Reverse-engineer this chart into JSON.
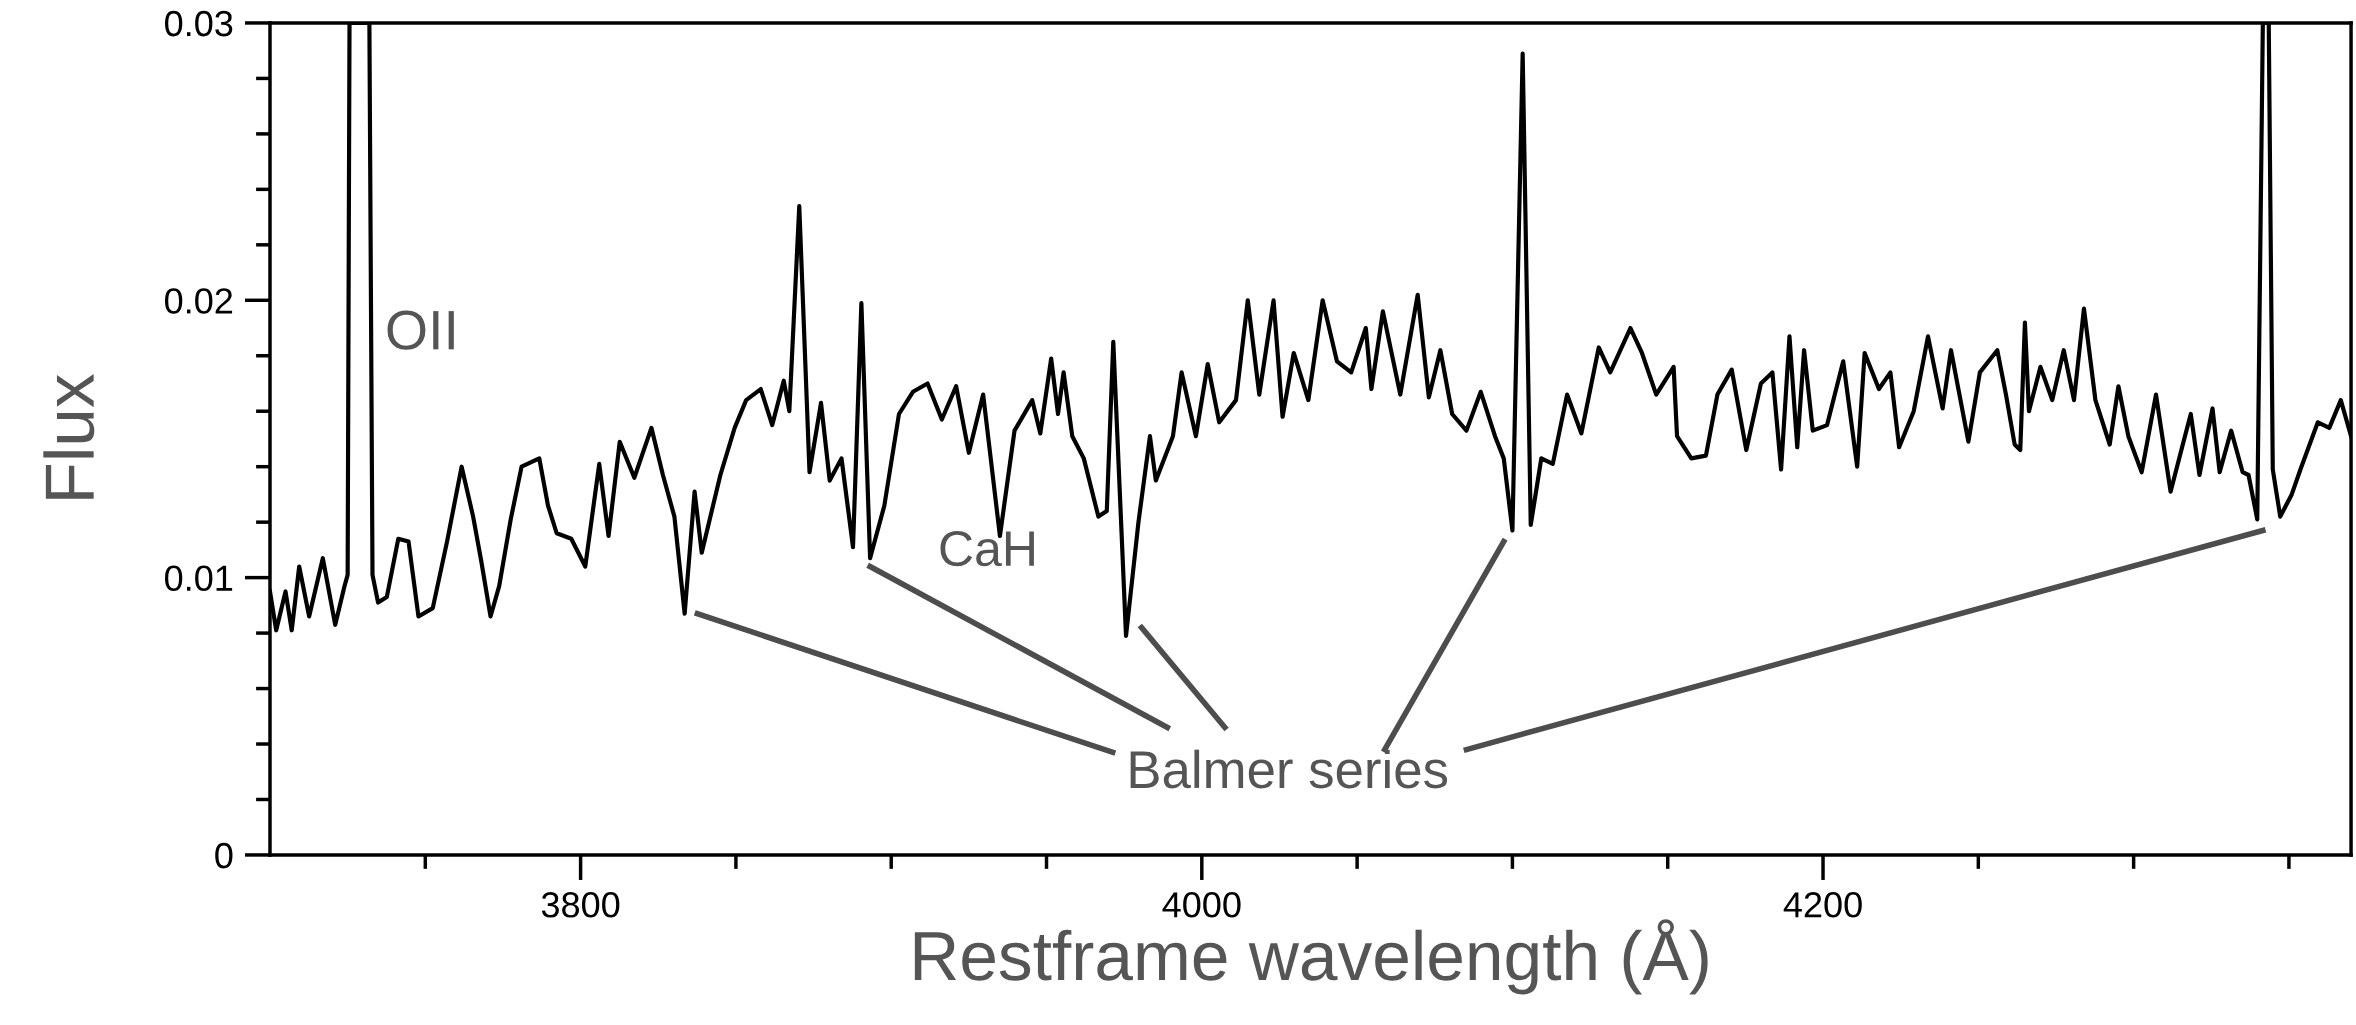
{
  "chart_data": {
    "type": "line",
    "xlabel": "Restframe wavelength (Å)",
    "ylabel": "Flux",
    "xlim": [
      3700,
      4370
    ],
    "ylim": [
      0,
      0.03
    ],
    "xticks": [
      {
        "value": 3750,
        "label": null
      },
      3800,
      {
        "value": 3850,
        "label": null
      },
      {
        "value": 3900,
        "label": null
      },
      {
        "value": 3950,
        "label": null
      },
      4000,
      {
        "value": 4050,
        "label": null
      },
      {
        "value": 4100,
        "label": null
      },
      {
        "value": 4150,
        "label": null
      },
      4200,
      {
        "value": 4250,
        "label": null
      },
      {
        "value": 4300,
        "label": null
      },
      {
        "value": 4350,
        "label": null
      }
    ],
    "yticks": [
      0,
      {
        "value": 0.002,
        "label": null
      },
      {
        "value": 0.004,
        "label": null
      },
      {
        "value": 0.006,
        "label": null
      },
      {
        "value": 0.008,
        "label": null
      },
      0.01,
      {
        "value": 0.012,
        "label": null
      },
      {
        "value": 0.014,
        "label": null
      },
      {
        "value": 0.016,
        "label": null
      },
      {
        "value": 0.018,
        "label": null
      },
      0.02,
      {
        "value": 0.022,
        "label": null
      },
      {
        "value": 0.024,
        "label": null
      },
      {
        "value": 0.026,
        "label": null
      },
      {
        "value": 0.028,
        "label": null
      },
      0.03
    ],
    "grid": false,
    "legend": false,
    "series": [
      {
        "color": "#000000",
        "x": [
          3700,
          3702,
          3705,
          3707,
          3709.4,
          3712.6,
          3717,
          3721,
          3724,
          3725,
          3725.6,
          3732,
          3733,
          3734.8,
          3737.6,
          3741.3,
          3744.6,
          3747.8,
          3752.4,
          3757,
          3761.7,
          3765.4,
          3768,
          3771,
          3773.8,
          3777.5,
          3781,
          3786.7,
          3789.5,
          3792.3,
          3797,
          3801.5,
          3806,
          3809,
          3812.6,
          3817.3,
          3822.8,
          3826.5,
          3830.2,
          3833.5,
          3836.7,
          3839,
          3845,
          3849.6,
          3853.3,
          3858,
          3861.7,
          3865.4,
          3867.2,
          3870.4,
          3873.7,
          3877.4,
          3880.2,
          3884,
          3887.7,
          3890.4,
          3893.2,
          3897.8,
          3902.5,
          3907,
          3911.7,
          3916.3,
          3920.9,
          3925,
          3929.6,
          3935,
          3939.7,
          3945.4,
          3948,
          3951.5,
          3953.7,
          3955.5,
          3958.3,
          3962,
          3966.7,
          3969.4,
          3971.5,
          3975.6,
          3979.6,
          3983.3,
          3985.2,
          3990.7,
          3993.5,
          3998.1,
          4001.9,
          4005.6,
          4011,
          4014.8,
          4018.5,
          4023.1,
          4026,
          4029.6,
          4034.3,
          4038.9,
          4043.5,
          4048.1,
          4052.8,
          4054.6,
          4058.3,
          4063.9,
          4069.5,
          4073.1,
          4076.8,
          4080.6,
          4085.2,
          4089.8,
          4094.4,
          4097.2,
          4100,
          4103.3,
          4105.9,
          4109.3,
          4113,
          4117.6,
          4122.2,
          4127.8,
          4131.5,
          4138,
          4141.7,
          4146.3,
          4151.9,
          4153,
          4157.6,
          4162.3,
          4166,
          4170.6,
          4175.3,
          4180,
          4183.7,
          4186.5,
          4189.2,
          4191.7,
          4193.9,
          4196.7,
          4201.3,
          4206.5,
          4211,
          4213.4,
          4218,
          4221.7,
          4224.5,
          4229.2,
          4233.8,
          4238.5,
          4241.2,
          4246.8,
          4250.5,
          4256.1,
          4258.9,
          4261.7,
          4263.5,
          4265,
          4266.3,
          4270,
          4273.8,
          4277.5,
          4280.8,
          4284,
          4287.7,
          4292.3,
          4295.1,
          4298.3,
          4302.6,
          4307.2,
          4311.9,
          4315.6,
          4318.4,
          4321.2,
          4325.4,
          4327.7,
          4331.4,
          4335.1,
          4337,
          4339.8,
          4341.6,
          4343.5,
          4344.8,
          4347.2,
          4350.9,
          4353.7,
          4359.3,
          4363,
          4366.7,
          4370
        ],
        "values": [
          0.0095,
          0.0081,
          0.0095,
          0.0081,
          0.0104,
          0.0086,
          0.0107,
          0.0083,
          0.0097,
          0.0101,
          0.03,
          0.03,
          0.0101,
          0.0091,
          0.0093,
          0.0114,
          0.0113,
          0.0086,
          0.0089,
          0.0113,
          0.014,
          0.0122,
          0.0106,
          0.0086,
          0.0097,
          0.0121,
          0.014,
          0.0143,
          0.0126,
          0.0116,
          0.0114,
          0.0104,
          0.0141,
          0.0115,
          0.0149,
          0.0136,
          0.0154,
          0.0137,
          0.0122,
          0.0087,
          0.0131,
          0.0109,
          0.0137,
          0.0154,
          0.0164,
          0.0168,
          0.0155,
          0.0171,
          0.016,
          0.0234,
          0.0138,
          0.0163,
          0.0135,
          0.0143,
          0.0111,
          0.0199,
          0.0107,
          0.0126,
          0.0159,
          0.0167,
          0.017,
          0.0157,
          0.0169,
          0.0145,
          0.0166,
          0.0115,
          0.0153,
          0.0164,
          0.0152,
          0.0179,
          0.0159,
          0.0174,
          0.0151,
          0.0143,
          0.0122,
          0.0124,
          0.0185,
          0.0079,
          0.012,
          0.0151,
          0.0135,
          0.0151,
          0.0174,
          0.0151,
          0.0177,
          0.0156,
          0.0164,
          0.02,
          0.0166,
          0.02,
          0.0158,
          0.0181,
          0.0164,
          0.02,
          0.0178,
          0.0174,
          0.019,
          0.0168,
          0.0196,
          0.0166,
          0.0202,
          0.0165,
          0.0182,
          0.0159,
          0.0153,
          0.0167,
          0.0151,
          0.0143,
          0.0117,
          0.0289,
          0.0119,
          0.0143,
          0.0141,
          0.0166,
          0.0152,
          0.0183,
          0.0174,
          0.019,
          0.0181,
          0.0166,
          0.0176,
          0.0151,
          0.0143,
          0.0144,
          0.0166,
          0.0175,
          0.0146,
          0.017,
          0.0174,
          0.0139,
          0.0187,
          0.0147,
          0.0182,
          0.0153,
          0.0155,
          0.0178,
          0.014,
          0.0181,
          0.0168,
          0.0174,
          0.0147,
          0.016,
          0.0187,
          0.0161,
          0.0182,
          0.0149,
          0.0174,
          0.0182,
          0.0166,
          0.0148,
          0.0146,
          0.0192,
          0.016,
          0.0176,
          0.0164,
          0.0182,
          0.0164,
          0.0197,
          0.0164,
          0.0148,
          0.0169,
          0.0151,
          0.0138,
          0.0166,
          0.0131,
          0.0147,
          0.0159,
          0.0137,
          0.0161,
          0.0138,
          0.0153,
          0.0138,
          0.0137,
          0.0121,
          0.03,
          0.03,
          0.0139,
          0.0122,
          0.013,
          0.0139,
          0.0156,
          0.0154,
          0.0164,
          0.0151
        ]
      },
      {
        "color": "#4d4d4d",
        "x": [
          3837.6,
          3971.3
        ],
        "values": [
          0.0087,
          0.0037
        ]
      },
      {
        "color": "#4d4d4d",
        "x": [
          3893.2,
          3988.9
        ],
        "values": [
          0.0104,
          0.0046
        ]
      },
      {
        "color": "#4d4d4d",
        "x": [
          3980.6,
          4007.4
        ],
        "values": [
          0.0082,
          0.0046
        ]
      },
      {
        "color": "#4d4d4d",
        "x": [
          4097.2,
          4058.9
        ],
        "values": [
          0.0113,
          0.0038
        ]
      },
      {
        "color": "#4d4d4d",
        "x": [
          4341.6,
          4085.2
        ],
        "values": [
          0.0117,
          0.0038
        ]
      }
    ],
    "annotations": [
      "OII",
      "CaH",
      "Balmer series"
    ]
  }
}
